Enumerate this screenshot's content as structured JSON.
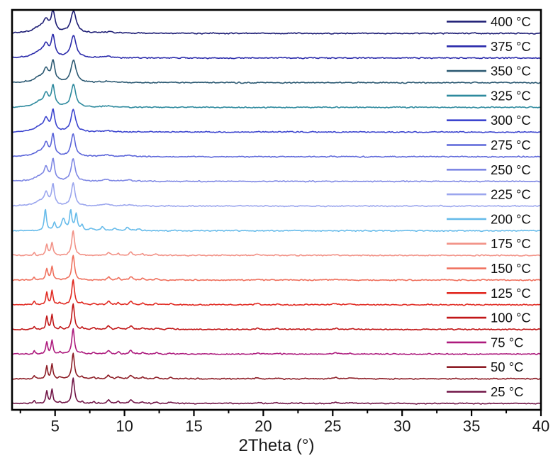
{
  "chart_data": {
    "type": "line",
    "title": "",
    "xlabel": "2Theta (°)",
    "ylabel": "",
    "x_range": [
      1.9,
      40
    ],
    "x_ticks": [
      5,
      10,
      15,
      20,
      25,
      30,
      35,
      40
    ],
    "x_minor_step": 2.5,
    "y_ticks": [],
    "grid": "off",
    "legend_position": "inside-right",
    "description": "Variable-temperature powder XRD patterns stacked with vertical offsets, 25-400 °C",
    "series": [
      {
        "name": "400 °C",
        "color": "#1c1c74",
        "peaks": [
          [
            3.9,
            0.22,
            0.55
          ],
          [
            4.35,
            0.4,
            0.22
          ],
          [
            4.85,
            0.8,
            0.16
          ],
          [
            6.33,
            0.85,
            0.24
          ],
          [
            8.8,
            0.05,
            0.5
          ]
        ]
      },
      {
        "name": "375 °C",
        "color": "#2b2bab",
        "peaks": [
          [
            3.9,
            0.22,
            0.55
          ],
          [
            4.35,
            0.42,
            0.22
          ],
          [
            4.85,
            0.8,
            0.15
          ],
          [
            6.33,
            0.85,
            0.23
          ],
          [
            8.8,
            0.05,
            0.5
          ]
        ]
      },
      {
        "name": "350 °C",
        "color": "#2d5a73",
        "peaks": [
          [
            3.9,
            0.2,
            0.5
          ],
          [
            4.35,
            0.42,
            0.2
          ],
          [
            4.85,
            0.8,
            0.15
          ],
          [
            6.33,
            0.86,
            0.22
          ],
          [
            8.8,
            0.05,
            0.5
          ]
        ]
      },
      {
        "name": "325 °C",
        "color": "#2e8a9e",
        "peaks": [
          [
            3.9,
            0.2,
            0.5
          ],
          [
            4.35,
            0.44,
            0.19
          ],
          [
            4.85,
            0.8,
            0.14
          ],
          [
            6.32,
            0.86,
            0.21
          ],
          [
            8.8,
            0.05,
            0.45
          ]
        ]
      },
      {
        "name": "300 °C",
        "color": "#3c45cf",
        "peaks": [
          [
            3.9,
            0.19,
            0.5
          ],
          [
            4.35,
            0.44,
            0.19
          ],
          [
            4.85,
            0.81,
            0.14
          ],
          [
            6.31,
            0.87,
            0.2
          ],
          [
            8.8,
            0.05,
            0.4
          ]
        ]
      },
      {
        "name": "275 °C",
        "color": "#5c66da",
        "peaks": [
          [
            3.9,
            0.18,
            0.5
          ],
          [
            4.35,
            0.45,
            0.18
          ],
          [
            4.85,
            0.82,
            0.13
          ],
          [
            6.3,
            0.88,
            0.18
          ],
          [
            8.7,
            0.06,
            0.35
          ],
          [
            10.3,
            0.05,
            0.3
          ]
        ]
      },
      {
        "name": "250 °C",
        "color": "#7e87e4",
        "peaks": [
          [
            3.9,
            0.18,
            0.48
          ],
          [
            4.35,
            0.45,
            0.17
          ],
          [
            4.85,
            0.82,
            0.13
          ],
          [
            6.3,
            0.88,
            0.17
          ],
          [
            8.7,
            0.06,
            0.35
          ],
          [
            10.3,
            0.05,
            0.3
          ]
        ]
      },
      {
        "name": "225 °C",
        "color": "#9ba6ee",
        "peaks": [
          [
            3.9,
            0.17,
            0.45
          ],
          [
            4.35,
            0.46,
            0.16
          ],
          [
            4.85,
            0.82,
            0.12
          ],
          [
            6.3,
            0.88,
            0.16
          ],
          [
            8.7,
            0.07,
            0.3
          ],
          [
            10.3,
            0.05,
            0.3
          ]
        ]
      },
      {
        "name": "200 °C",
        "color": "#66bbea",
        "peaks": [
          [
            4.3,
            0.85,
            0.09
          ],
          [
            4.95,
            0.3,
            0.1
          ],
          [
            5.6,
            0.45,
            0.16
          ],
          [
            6.12,
            0.75,
            0.1
          ],
          [
            6.52,
            0.62,
            0.1
          ],
          [
            6.95,
            0.22,
            0.09
          ],
          [
            7.6,
            0.1,
            0.12
          ],
          [
            8.4,
            0.15,
            0.12
          ],
          [
            9.3,
            0.1,
            0.12
          ],
          [
            10.2,
            0.13,
            0.15
          ],
          [
            11.0,
            0.07,
            0.15
          ]
        ]
      },
      {
        "name": "175 °C",
        "color": "#f29287",
        "peaks": [
          [
            3.5,
            0.1,
            0.07
          ],
          [
            4.4,
            0.4,
            0.09
          ],
          [
            4.78,
            0.5,
            0.09
          ],
          [
            6.3,
            0.95,
            0.12
          ],
          [
            8.85,
            0.12,
            0.12
          ],
          [
            9.55,
            0.07,
            0.1
          ],
          [
            10.45,
            0.12,
            0.14
          ],
          [
            11.3,
            0.06,
            0.1
          ],
          [
            12.3,
            0.05,
            0.12
          ],
          [
            19.6,
            0.04,
            0.15
          ],
          [
            25.2,
            0.03,
            0.2
          ]
        ]
      },
      {
        "name": "150 °C",
        "color": "#ef6f5c",
        "peaks": [
          [
            3.5,
            0.1,
            0.07
          ],
          [
            4.4,
            0.42,
            0.09
          ],
          [
            4.78,
            0.52,
            0.09
          ],
          [
            6.3,
            0.97,
            0.12
          ],
          [
            8.85,
            0.12,
            0.12
          ],
          [
            9.55,
            0.07,
            0.1
          ],
          [
            10.45,
            0.13,
            0.14
          ],
          [
            11.3,
            0.06,
            0.1
          ],
          [
            12.3,
            0.05,
            0.12
          ],
          [
            19.6,
            0.04,
            0.15
          ],
          [
            25.2,
            0.03,
            0.2
          ]
        ]
      },
      {
        "name": "125 °C",
        "color": "#e12a22",
        "peaks": [
          [
            3.5,
            0.12,
            0.07
          ],
          [
            4.4,
            0.48,
            0.08
          ],
          [
            4.78,
            0.55,
            0.08
          ],
          [
            5.35,
            0.07,
            0.08
          ],
          [
            6.3,
            1.0,
            0.11
          ],
          [
            6.95,
            0.07,
            0.08
          ],
          [
            7.8,
            0.06,
            0.1
          ],
          [
            8.85,
            0.14,
            0.12
          ],
          [
            9.55,
            0.08,
            0.1
          ],
          [
            10.45,
            0.14,
            0.14
          ],
          [
            11.3,
            0.07,
            0.1
          ],
          [
            12.3,
            0.06,
            0.12
          ],
          [
            13.3,
            0.05,
            0.12
          ],
          [
            19.6,
            0.04,
            0.15
          ],
          [
            21.0,
            0.03,
            0.15
          ],
          [
            25.2,
            0.04,
            0.2
          ],
          [
            26.3,
            0.03,
            0.2
          ]
        ]
      },
      {
        "name": "100 °C",
        "color": "#c11617",
        "peaks": [
          [
            3.5,
            0.12,
            0.07
          ],
          [
            4.4,
            0.48,
            0.08
          ],
          [
            4.78,
            0.56,
            0.08
          ],
          [
            5.35,
            0.07,
            0.08
          ],
          [
            6.3,
            1.0,
            0.11
          ],
          [
            6.95,
            0.07,
            0.08
          ],
          [
            7.8,
            0.06,
            0.1
          ],
          [
            8.85,
            0.14,
            0.12
          ],
          [
            9.55,
            0.08,
            0.1
          ],
          [
            10.45,
            0.14,
            0.14
          ],
          [
            11.3,
            0.07,
            0.1
          ],
          [
            12.3,
            0.06,
            0.12
          ],
          [
            13.3,
            0.05,
            0.12
          ],
          [
            19.6,
            0.04,
            0.15
          ],
          [
            21.0,
            0.03,
            0.15
          ],
          [
            25.2,
            0.04,
            0.2
          ],
          [
            26.3,
            0.03,
            0.2
          ]
        ]
      },
      {
        "name": "75 °C",
        "color": "#ad1a7d",
        "peaks": [
          [
            3.5,
            0.12,
            0.07
          ],
          [
            4.4,
            0.46,
            0.08
          ],
          [
            4.78,
            0.55,
            0.08
          ],
          [
            5.35,
            0.07,
            0.08
          ],
          [
            6.3,
            1.0,
            0.11
          ],
          [
            6.95,
            0.07,
            0.08
          ],
          [
            7.8,
            0.06,
            0.1
          ],
          [
            8.85,
            0.14,
            0.12
          ],
          [
            9.55,
            0.08,
            0.1
          ],
          [
            10.45,
            0.14,
            0.14
          ],
          [
            11.3,
            0.07,
            0.1
          ],
          [
            12.3,
            0.06,
            0.12
          ],
          [
            13.3,
            0.05,
            0.12
          ],
          [
            19.6,
            0.04,
            0.15
          ],
          [
            21.0,
            0.03,
            0.15
          ],
          [
            25.2,
            0.04,
            0.2
          ],
          [
            26.3,
            0.03,
            0.2
          ]
        ]
      },
      {
        "name": "50 °C",
        "color": "#8d1d26",
        "peaks": [
          [
            3.5,
            0.12,
            0.07
          ],
          [
            4.4,
            0.47,
            0.08
          ],
          [
            4.78,
            0.56,
            0.08
          ],
          [
            5.35,
            0.07,
            0.08
          ],
          [
            6.3,
            1.0,
            0.11
          ],
          [
            6.95,
            0.07,
            0.08
          ],
          [
            7.8,
            0.06,
            0.1
          ],
          [
            8.85,
            0.14,
            0.12
          ],
          [
            9.55,
            0.08,
            0.1
          ],
          [
            10.45,
            0.14,
            0.14
          ],
          [
            11.3,
            0.07,
            0.1
          ],
          [
            12.3,
            0.06,
            0.12
          ],
          [
            13.3,
            0.05,
            0.12
          ],
          [
            19.6,
            0.04,
            0.15
          ],
          [
            21.0,
            0.03,
            0.15
          ],
          [
            25.2,
            0.04,
            0.2
          ],
          [
            26.3,
            0.03,
            0.2
          ]
        ]
      },
      {
        "name": "25 °C",
        "color": "#701446",
        "peaks": [
          [
            3.5,
            0.12,
            0.07
          ],
          [
            4.4,
            0.46,
            0.08
          ],
          [
            4.78,
            0.55,
            0.08
          ],
          [
            5.35,
            0.07,
            0.08
          ],
          [
            6.3,
            1.0,
            0.11
          ],
          [
            6.95,
            0.07,
            0.08
          ],
          [
            7.8,
            0.06,
            0.1
          ],
          [
            8.85,
            0.14,
            0.12
          ],
          [
            9.55,
            0.08,
            0.1
          ],
          [
            10.45,
            0.14,
            0.14
          ],
          [
            11.3,
            0.07,
            0.1
          ],
          [
            12.3,
            0.06,
            0.12
          ],
          [
            13.3,
            0.05,
            0.12
          ],
          [
            19.6,
            0.04,
            0.15
          ],
          [
            21.0,
            0.03,
            0.15
          ],
          [
            25.2,
            0.04,
            0.2
          ],
          [
            26.3,
            0.03,
            0.2
          ]
        ]
      }
    ],
    "axis_color": "#000000",
    "tick_label_color": "#1a1a1a",
    "legend_text_color": "#111111"
  }
}
